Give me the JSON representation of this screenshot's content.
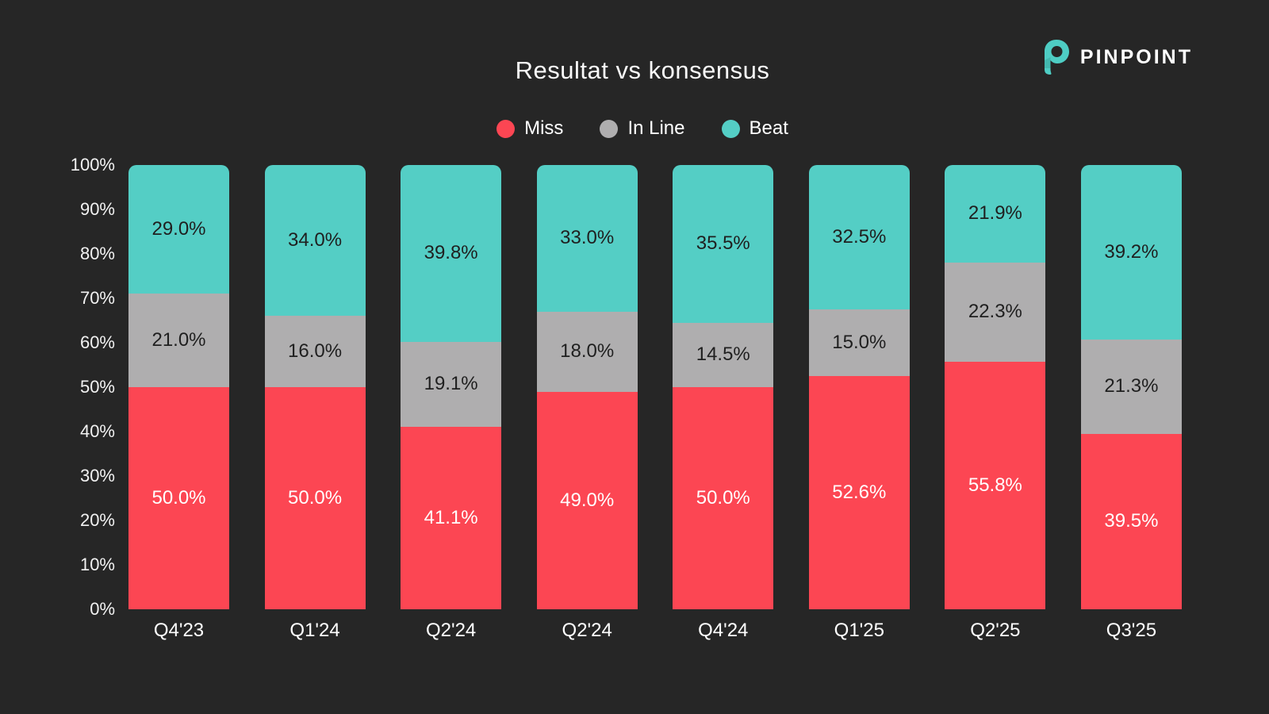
{
  "title": "Resultat vs konsensus",
  "brand": {
    "name": "PINPOINT",
    "logo_color": "#4ECDC4"
  },
  "colors": {
    "background": "#262626",
    "dark_label": "#1f1f1f",
    "light_label": "#ffffff",
    "axis_text": "#f2f2f2"
  },
  "chart_data": {
    "type": "bar",
    "stacked": true,
    "percent_stack": true,
    "title": "Resultat vs konsensus",
    "categories": [
      "Q4'23",
      "Q1'24",
      "Q2'24",
      "Q2'24",
      "Q4'24",
      "Q1'25",
      "Q2'25",
      "Q3'25"
    ],
    "series": [
      {
        "name": "Miss",
        "color": "#FC4653",
        "label_color": "#ffffff",
        "values": [
          50.0,
          50.0,
          41.1,
          49.0,
          50.0,
          52.6,
          55.8,
          39.5
        ]
      },
      {
        "name": "In Line",
        "color": "#AFAEAF",
        "label_color": "#1f1f1f",
        "values": [
          21.0,
          16.0,
          19.1,
          18.0,
          14.5,
          15.0,
          22.3,
          21.3
        ]
      },
      {
        "name": "Beat",
        "color": "#54CEC5",
        "label_color": "#1f1f1f",
        "values": [
          29.0,
          34.0,
          39.8,
          33.0,
          35.5,
          32.5,
          21.9,
          39.2
        ]
      }
    ],
    "value_suffix": "%",
    "value_decimals": 1,
    "yticks": [
      "100%",
      "90%",
      "80%",
      "70%",
      "60%",
      "50%",
      "40%",
      "30%",
      "20%",
      "10%",
      "0%"
    ],
    "ylim": [
      0,
      100
    ],
    "grid": false,
    "legend_position": "top",
    "xlabel": "",
    "ylabel": ""
  }
}
